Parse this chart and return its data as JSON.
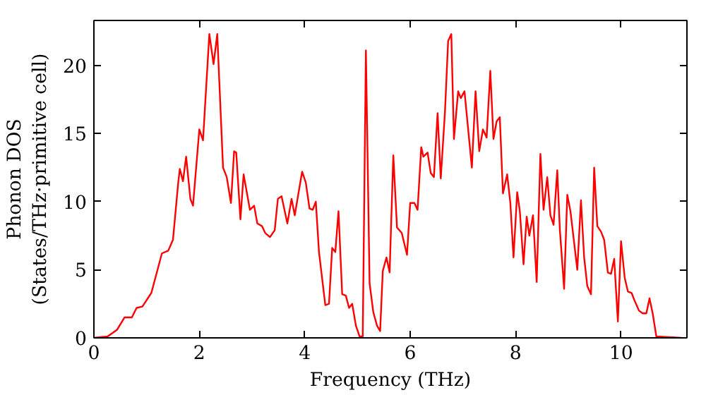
{
  "chart_data": {
    "type": "line",
    "xlabel": "Frequency (THz)",
    "ylabel": "Phonon DOS\n(States/THz·primitive cell)",
    "xlim": [
      0,
      11.25
    ],
    "ylim": [
      0,
      23.3
    ],
    "xticks": [
      0,
      2,
      4,
      6,
      8,
      10
    ],
    "yticks": [
      0,
      5,
      10,
      15,
      20
    ],
    "grid": false,
    "marker": "none",
    "line_style": "solid",
    "series": [
      {
        "color": "#ff0000",
        "x": [
          0,
          0.26,
          0.44,
          0.58,
          0.72,
          0.81,
          0.92,
          1.09,
          1.29,
          1.41,
          1.5,
          1.6,
          1.63,
          1.69,
          1.75,
          1.83,
          1.88,
          2.0,
          2.07,
          2.19,
          2.27,
          2.34,
          2.45,
          2.52,
          2.6,
          2.66,
          2.7,
          2.78,
          2.84,
          2.96,
          3.04,
          3.1,
          3.19,
          3.25,
          3.34,
          3.43,
          3.49,
          3.56,
          3.67,
          3.75,
          3.81,
          3.95,
          4.02,
          4.09,
          4.15,
          4.21,
          4.27,
          4.39,
          4.46,
          4.52,
          4.58,
          4.64,
          4.71,
          4.78,
          4.84,
          4.9,
          4.97,
          5.04,
          5.1,
          5.16,
          5.23,
          5.3,
          5.37,
          5.43,
          5.48,
          5.55,
          5.61,
          5.68,
          5.75,
          5.84,
          5.94,
          6.0,
          6.08,
          6.14,
          6.21,
          6.25,
          6.33,
          6.39,
          6.45,
          6.52,
          6.58,
          6.66,
          6.72,
          6.78,
          6.83,
          6.91,
          6.96,
          7.03,
          7.17,
          7.24,
          7.31,
          7.38,
          7.45,
          7.52,
          7.58,
          7.64,
          7.7,
          7.76,
          7.84,
          7.9,
          7.96,
          8.03,
          8.08,
          8.15,
          8.21,
          8.26,
          8.33,
          8.4,
          8.47,
          8.53,
          8.6,
          8.66,
          8.72,
          8.79,
          8.84,
          8.92,
          8.98,
          9.04,
          9.11,
          9.17,
          9.24,
          9.3,
          9.36,
          9.43,
          9.49,
          9.55,
          9.62,
          9.68,
          9.75,
          9.81,
          9.87,
          9.94,
          10.0,
          10.07,
          10.13,
          10.2,
          10.26,
          10.34,
          10.41,
          10.48,
          10.54,
          10.6,
          10.67,
          11.15
        ],
        "values": [
          0,
          0.1,
          0.6,
          1.5,
          1.5,
          2.2,
          2.3,
          3.3,
          6.2,
          6.4,
          7.2,
          11.4,
          12.4,
          11.5,
          13.3,
          10.2,
          9.7,
          15.3,
          14.5,
          22.3,
          20.1,
          22.3,
          12.5,
          11.8,
          9.9,
          13.7,
          13.6,
          8.7,
          12.0,
          9.4,
          9.7,
          8.4,
          8.2,
          7.7,
          7.4,
          7.9,
          10.2,
          10.4,
          8.4,
          10.2,
          9.0,
          12.2,
          11.4,
          9.5,
          9.4,
          10.0,
          6.3,
          2.4,
          2.5,
          6.6,
          6.3,
          9.3,
          3.2,
          3.1,
          2.2,
          2.5,
          0.9,
          0.1,
          0.1,
          21.1,
          4.0,
          1.9,
          0.9,
          0.5,
          4.9,
          5.9,
          4.8,
          13.4,
          8.1,
          7.7,
          6.1,
          9.9,
          9.9,
          9.4,
          14.0,
          13.3,
          13.6,
          12.1,
          11.8,
          16.5,
          11.7,
          16.6,
          21.8,
          22.3,
          14.6,
          18.1,
          17.6,
          18.1,
          12.5,
          18.1,
          13.7,
          15.3,
          14.7,
          19.6,
          14.6,
          15.9,
          16.2,
          10.6,
          12.0,
          9.9,
          5.9,
          10.7,
          9.3,
          5.4,
          8.9,
          7.5,
          9.0,
          4.1,
          13.5,
          9.4,
          11.8,
          9.0,
          8.3,
          12.3,
          7.9,
          3.6,
          10.5,
          9.3,
          7.0,
          5.0,
          10.1,
          5.9,
          3.8,
          3.2,
          12.5,
          8.2,
          7.8,
          7.2,
          4.8,
          4.7,
          5.8,
          1.2,
          7.1,
          4.4,
          3.4,
          3.3,
          2.7,
          2.0,
          1.8,
          1.8,
          2.9,
          1.8,
          0.1,
          0
        ]
      }
    ]
  }
}
